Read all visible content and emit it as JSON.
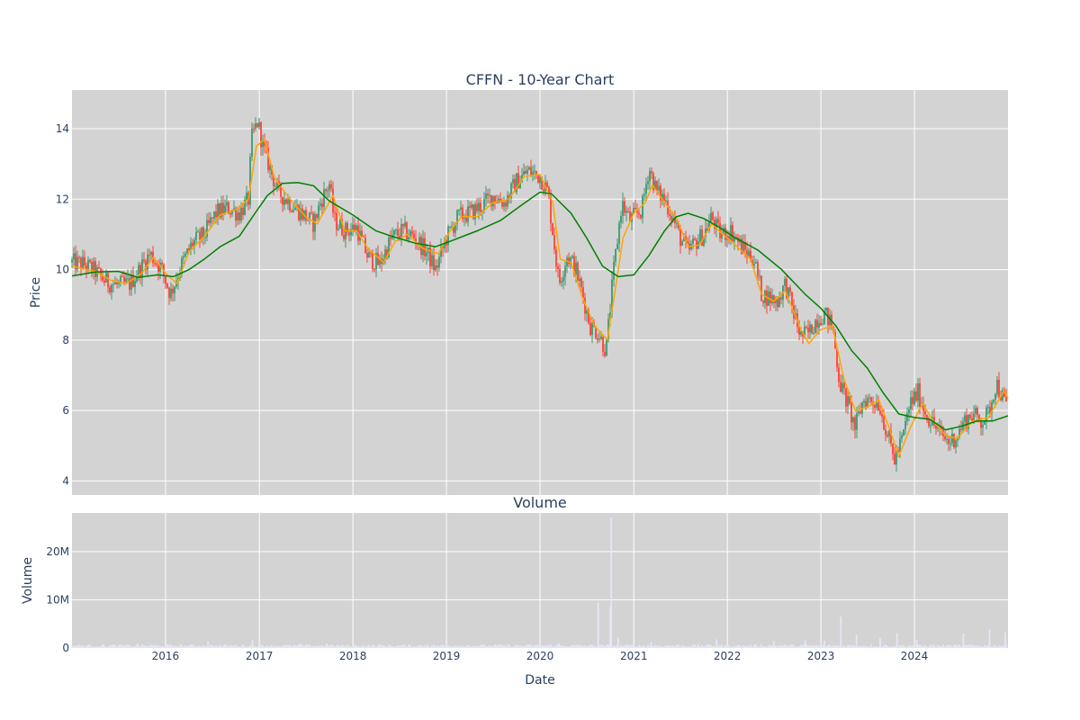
{
  "chart_data": {
    "type": "candlestick",
    "title": "CFFN - 10-Year Chart",
    "subplot_title": "Volume",
    "xlabel": "Date",
    "ylabel": "Price",
    "volume_ylabel": "Volume",
    "x_range": [
      "2015-01-01",
      "2024-12-31"
    ],
    "x_ticks": [
      "2016",
      "2017",
      "2018",
      "2019",
      "2020",
      "2021",
      "2022",
      "2023",
      "2024"
    ],
    "price_ylim": [
      3.6,
      15.1
    ],
    "price_ticks": [
      "4",
      "6",
      "8",
      "10",
      "12",
      "14"
    ],
    "volume_ylim": [
      0,
      28000000
    ],
    "volume_ticks": [
      "0",
      "10M",
      "20M"
    ],
    "grid": true,
    "background": "#d3d3d3",
    "colors": {
      "increasing": "#3d9970",
      "decreasing": "#ff4136",
      "ma_short": "#ffa500",
      "ma_long": "#008000",
      "volume": "#e6e6fa"
    },
    "price_path": [
      [
        "2015-01-01",
        10.2
      ],
      [
        "2015-02-15",
        10.15
      ],
      [
        "2015-04-01",
        9.95
      ],
      [
        "2015-05-15",
        9.65
      ],
      [
        "2015-07-01",
        9.55
      ],
      [
        "2015-08-15",
        9.6
      ],
      [
        "2015-10-01",
        10.1
      ],
      [
        "2015-11-01",
        10.45
      ],
      [
        "2015-12-15",
        10.05
      ],
      [
        "2016-01-20",
        9.3
      ],
      [
        "2016-03-01",
        10.1
      ],
      [
        "2016-04-15",
        10.75
      ],
      [
        "2016-06-01",
        11.0
      ],
      [
        "2016-07-15",
        11.6
      ],
      [
        "2016-09-01",
        11.75
      ],
      [
        "2016-10-15",
        11.6
      ],
      [
        "2016-11-20",
        12.0
      ],
      [
        "2016-12-01",
        13.7
      ],
      [
        "2016-12-25",
        14.2
      ],
      [
        "2017-01-15",
        13.5
      ],
      [
        "2017-02-10",
        12.9
      ],
      [
        "2017-03-15",
        12.2
      ],
      [
        "2017-05-01",
        11.9
      ],
      [
        "2017-06-15",
        11.6
      ],
      [
        "2017-08-01",
        11.3
      ],
      [
        "2017-09-01",
        12.0
      ],
      [
        "2017-10-01",
        12.45
      ],
      [
        "2017-10-20",
        11.4
      ],
      [
        "2017-12-01",
        11.1
      ],
      [
        "2018-01-15",
        11.2
      ],
      [
        "2018-03-01",
        10.35
      ],
      [
        "2018-04-15",
        10.15
      ],
      [
        "2018-06-01",
        10.9
      ],
      [
        "2018-07-15",
        11.1
      ],
      [
        "2018-09-01",
        10.9
      ],
      [
        "2018-10-15",
        10.5
      ],
      [
        "2018-11-20",
        10.0
      ],
      [
        "2019-01-01",
        10.9
      ],
      [
        "2019-02-15",
        11.5
      ],
      [
        "2019-04-01",
        11.6
      ],
      [
        "2019-05-15",
        11.8
      ],
      [
        "2019-07-01",
        12.1
      ],
      [
        "2019-08-15",
        11.9
      ],
      [
        "2019-10-01",
        12.5
      ],
      [
        "2019-11-15",
        12.8
      ],
      [
        "2020-01-01",
        12.65
      ],
      [
        "2020-02-01",
        12.2
      ],
      [
        "2020-03-15",
        9.6
      ],
      [
        "2020-04-15",
        10.4
      ],
      [
        "2020-05-15",
        10.1
      ],
      [
        "2020-06-15",
        9.3
      ],
      [
        "2020-07-15",
        8.4
      ],
      [
        "2020-08-15",
        8.2
      ],
      [
        "2020-09-15",
        7.7
      ],
      [
        "2020-10-15",
        10.0
      ],
      [
        "2020-11-15",
        11.9
      ],
      [
        "2020-12-15",
        11.4
      ],
      [
        "2021-02-01",
        11.7
      ],
      [
        "2021-03-01",
        12.9
      ],
      [
        "2021-04-01",
        12.2
      ],
      [
        "2021-05-01",
        12.0
      ],
      [
        "2021-06-01",
        11.5
      ],
      [
        "2021-07-01",
        10.9
      ],
      [
        "2021-08-01",
        10.5
      ],
      [
        "2021-09-01",
        10.8
      ],
      [
        "2021-10-01",
        11.0
      ],
      [
        "2021-11-01",
        11.5
      ],
      [
        "2021-12-01",
        11.0
      ],
      [
        "2022-01-15",
        11.1
      ],
      [
        "2022-03-01",
        10.6
      ],
      [
        "2022-04-15",
        10.3
      ],
      [
        "2022-05-15",
        9.3
      ],
      [
        "2022-06-15",
        9.2
      ],
      [
        "2022-07-15",
        9.1
      ],
      [
        "2022-08-15",
        9.6
      ],
      [
        "2022-09-15",
        8.8
      ],
      [
        "2022-10-15",
        8.1
      ],
      [
        "2022-11-15",
        8.2
      ],
      [
        "2022-12-15",
        8.6
      ],
      [
        "2023-01-15",
        8.75
      ],
      [
        "2023-02-15",
        8.4
      ],
      [
        "2023-03-15",
        6.8
      ],
      [
        "2023-04-15",
        6.2
      ],
      [
        "2023-05-15",
        5.5
      ],
      [
        "2023-06-15",
        6.3
      ],
      [
        "2023-07-15",
        6.3
      ],
      [
        "2023-08-15",
        6.2
      ],
      [
        "2023-09-15",
        5.4
      ],
      [
        "2023-10-15",
        4.6
      ],
      [
        "2023-11-15",
        5.2
      ],
      [
        "2023-12-15",
        6.2
      ],
      [
        "2024-01-15",
        6.5
      ],
      [
        "2024-02-15",
        5.9
      ],
      [
        "2024-03-15",
        5.6
      ],
      [
        "2024-04-15",
        5.3
      ],
      [
        "2024-05-15",
        5.1
      ],
      [
        "2024-06-15",
        5.3
      ],
      [
        "2024-07-15",
        5.7
      ],
      [
        "2024-08-15",
        5.9
      ],
      [
        "2024-09-15",
        5.7
      ],
      [
        "2024-10-15",
        5.9
      ],
      [
        "2024-11-15",
        6.8
      ],
      [
        "2024-12-31",
        6.0
      ]
    ],
    "ma_short": [
      [
        "2015-01-01",
        10.1
      ],
      [
        "2015-04-01",
        9.95
      ],
      [
        "2015-06-01",
        9.7
      ],
      [
        "2015-08-01",
        9.6
      ],
      [
        "2015-10-01",
        9.9
      ],
      [
        "2015-11-15",
        10.35
      ],
      [
        "2016-01-01",
        9.9
      ],
      [
        "2016-02-15",
        9.6
      ],
      [
        "2016-04-01",
        10.5
      ],
      [
        "2016-06-01",
        10.95
      ],
      [
        "2016-08-01",
        11.55
      ],
      [
        "2016-10-01",
        11.7
      ],
      [
        "2016-11-20",
        12.0
      ],
      [
        "2016-12-20",
        13.5
      ],
      [
        "2017-01-20",
        13.7
      ],
      [
        "2017-03-01",
        12.6
      ],
      [
        "2017-05-01",
        12.0
      ],
      [
        "2017-07-01",
        11.5
      ],
      [
        "2017-08-15",
        11.3
      ],
      [
        "2017-10-15",
        12.1
      ],
      [
        "2017-12-01",
        11.1
      ],
      [
        "2018-01-15",
        11.1
      ],
      [
        "2018-03-01",
        10.6
      ],
      [
        "2018-05-01",
        10.2
      ],
      [
        "2018-06-15",
        10.8
      ],
      [
        "2018-08-01",
        11.0
      ],
      [
        "2018-10-01",
        10.6
      ],
      [
        "2018-12-01",
        10.45
      ],
      [
        "2019-01-15",
        11.1
      ],
      [
        "2019-03-01",
        11.5
      ],
      [
        "2019-05-01",
        11.5
      ],
      [
        "2019-07-01",
        11.9
      ],
      [
        "2019-09-01",
        12.0
      ],
      [
        "2019-11-01",
        12.65
      ],
      [
        "2020-01-01",
        12.7
      ],
      [
        "2020-02-20",
        11.9
      ],
      [
        "2020-03-20",
        10.3
      ],
      [
        "2020-05-01",
        10.2
      ],
      [
        "2020-06-15",
        9.2
      ],
      [
        "2020-08-01",
        8.4
      ],
      [
        "2020-09-20",
        8.0
      ],
      [
        "2020-10-20",
        9.4
      ],
      [
        "2020-11-20",
        10.9
      ],
      [
        "2021-01-01",
        11.6
      ],
      [
        "2021-02-15",
        11.9
      ],
      [
        "2021-03-15",
        12.4
      ],
      [
        "2021-05-01",
        11.9
      ],
      [
        "2021-06-15",
        11.5
      ],
      [
        "2021-08-01",
        10.65
      ],
      [
        "2021-09-15",
        10.7
      ],
      [
        "2021-11-01",
        11.3
      ],
      [
        "2021-12-15",
        11.0
      ],
      [
        "2022-02-01",
        10.7
      ],
      [
        "2022-04-01",
        10.3
      ],
      [
        "2022-05-15",
        9.3
      ],
      [
        "2022-07-01",
        9.1
      ],
      [
        "2022-08-15",
        9.4
      ],
      [
        "2022-10-15",
        8.3
      ],
      [
        "2022-11-15",
        7.9
      ],
      [
        "2023-01-01",
        8.3
      ],
      [
        "2023-02-15",
        8.4
      ],
      [
        "2023-04-01",
        6.9
      ],
      [
        "2023-05-15",
        6.0
      ],
      [
        "2023-07-01",
        6.1
      ],
      [
        "2023-08-15",
        6.3
      ],
      [
        "2023-09-20",
        5.6
      ],
      [
        "2023-11-01",
        4.7
      ],
      [
        "2023-12-15",
        5.5
      ],
      [
        "2024-02-01",
        6.2
      ],
      [
        "2024-03-15",
        5.7
      ],
      [
        "2024-05-01",
        5.3
      ],
      [
        "2024-06-15",
        5.2
      ],
      [
        "2024-08-15",
        5.7
      ],
      [
        "2024-10-15",
        5.8
      ],
      [
        "2024-12-15",
        6.55
      ],
      [
        "2024-12-31",
        6.35
      ]
    ],
    "ma_long": [
      [
        "2015-01-01",
        9.82
      ],
      [
        "2015-04-01",
        9.93
      ],
      [
        "2015-07-01",
        9.95
      ],
      [
        "2015-09-15",
        9.78
      ],
      [
        "2015-12-01",
        9.85
      ],
      [
        "2016-02-01",
        9.8
      ],
      [
        "2016-04-01",
        10.0
      ],
      [
        "2016-06-01",
        10.3
      ],
      [
        "2016-08-01",
        10.65
      ],
      [
        "2016-10-15",
        10.95
      ],
      [
        "2016-12-15",
        11.6
      ],
      [
        "2017-02-01",
        12.1
      ],
      [
        "2017-04-01",
        12.45
      ],
      [
        "2017-06-01",
        12.47
      ],
      [
        "2017-08-01",
        12.38
      ],
      [
        "2017-10-01",
        11.95
      ],
      [
        "2018-01-01",
        11.55
      ],
      [
        "2018-04-01",
        11.1
      ],
      [
        "2018-06-01",
        10.95
      ],
      [
        "2018-09-01",
        10.75
      ],
      [
        "2018-11-20",
        10.65
      ],
      [
        "2019-02-01",
        10.85
      ],
      [
        "2019-05-01",
        11.1
      ],
      [
        "2019-08-01",
        11.4
      ],
      [
        "2019-10-15",
        11.8
      ],
      [
        "2020-01-01",
        12.2
      ],
      [
        "2020-02-15",
        12.15
      ],
      [
        "2020-05-01",
        11.6
      ],
      [
        "2020-07-01",
        10.9
      ],
      [
        "2020-09-01",
        10.1
      ],
      [
        "2020-11-01",
        9.8
      ],
      [
        "2021-01-01",
        9.85
      ],
      [
        "2021-03-01",
        10.4
      ],
      [
        "2021-05-01",
        11.1
      ],
      [
        "2021-06-15",
        11.5
      ],
      [
        "2021-08-01",
        11.6
      ],
      [
        "2021-10-01",
        11.45
      ],
      [
        "2021-12-01",
        11.2
      ],
      [
        "2022-02-01",
        10.9
      ],
      [
        "2022-05-01",
        10.55
      ],
      [
        "2022-08-01",
        10.0
      ],
      [
        "2022-11-01",
        9.3
      ],
      [
        "2023-01-01",
        8.9
      ],
      [
        "2023-03-01",
        8.4
      ],
      [
        "2023-05-01",
        7.7
      ],
      [
        "2023-07-01",
        7.2
      ],
      [
        "2023-09-01",
        6.5
      ],
      [
        "2023-11-01",
        5.9
      ],
      [
        "2024-01-01",
        5.8
      ],
      [
        "2024-03-01",
        5.75
      ],
      [
        "2024-05-01",
        5.45
      ],
      [
        "2024-07-01",
        5.55
      ],
      [
        "2024-09-01",
        5.7
      ],
      [
        "2024-11-01",
        5.7
      ],
      [
        "2024-12-31",
        5.85
      ]
    ],
    "volume_spikes": [
      [
        "2015-05-01",
        800000
      ],
      [
        "2015-09-15",
        900000
      ],
      [
        "2016-06-15",
        1400000
      ],
      [
        "2016-12-05",
        1600000
      ],
      [
        "2017-06-10",
        900000
      ],
      [
        "2017-09-20",
        900000
      ],
      [
        "2018-10-20",
        700000
      ],
      [
        "2019-07-10",
        700000
      ],
      [
        "2020-03-15",
        1000000
      ],
      [
        "2020-08-15",
        9500000
      ],
      [
        "2020-10-01",
        8500000
      ],
      [
        "2020-10-05",
        27000000
      ],
      [
        "2020-11-01",
        2200000
      ],
      [
        "2021-03-10",
        1200000
      ],
      [
        "2021-11-20",
        1800000
      ],
      [
        "2022-07-01",
        1400000
      ],
      [
        "2022-11-01",
        1600000
      ],
      [
        "2023-01-15",
        1500000
      ],
      [
        "2023-03-20",
        6500000
      ],
      [
        "2023-05-20",
        2700000
      ],
      [
        "2023-08-20",
        2100000
      ],
      [
        "2023-10-25",
        3100000
      ],
      [
        "2024-01-10",
        1700000
      ],
      [
        "2024-07-10",
        3000000
      ],
      [
        "2024-10-20",
        3800000
      ],
      [
        "2024-12-20",
        3200000
      ]
    ]
  }
}
